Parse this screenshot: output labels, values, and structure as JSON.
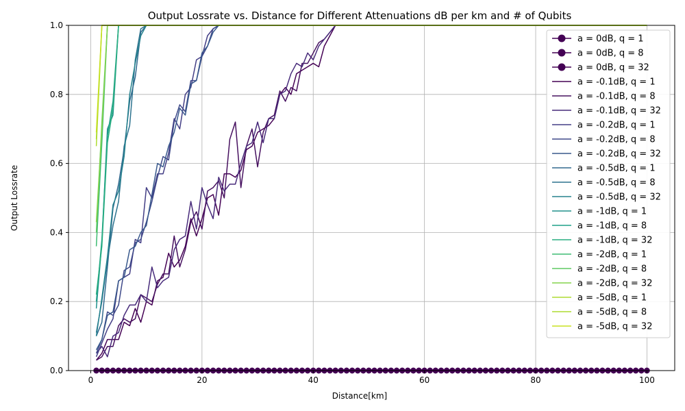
{
  "chart_data": {
    "type": "line",
    "title": "Output Lossrate vs. Distance for Different Attenuations dB per km and # of Qubits",
    "xlabel": "Distance[km]",
    "ylabel": "Output Lossrate",
    "xlim": [
      -4,
      105
    ],
    "ylim": [
      0,
      1
    ],
    "xticks": [
      0,
      20,
      40,
      60,
      80,
      100
    ],
    "yticks": [
      0.0,
      0.2,
      0.4,
      0.6,
      0.8,
      1.0
    ],
    "xtick_labels": [
      "0",
      "20",
      "40",
      "60",
      "80",
      "100"
    ],
    "ytick_labels": [
      "0.0",
      "0.2",
      "0.4",
      "0.6",
      "0.8",
      "1.0"
    ],
    "grid": true,
    "legend_position": "upper right",
    "series": [
      {
        "name": "a = 0dB, q = 1",
        "color": "#440154",
        "marker": "circle",
        "points": [
          [
            1,
            0
          ],
          [
            100,
            0
          ]
        ]
      },
      {
        "name": "a = 0dB, q = 8",
        "color": "#440154",
        "marker": "circle",
        "points": [
          [
            1,
            0
          ],
          [
            100,
            0
          ]
        ]
      },
      {
        "name": "a = 0dB, q = 32",
        "color": "#440154",
        "marker": "circle",
        "points": [
          [
            1,
            0
          ],
          [
            100,
            0
          ]
        ]
      },
      {
        "name": "a = -0.1dB, q = 1",
        "color": "#440154",
        "points": [
          [
            1,
            0.03
          ],
          [
            2,
            0.05
          ],
          [
            3,
            0.09
          ],
          [
            4,
            0.09
          ],
          [
            5,
            0.09
          ],
          [
            6,
            0.14
          ],
          [
            7,
            0.13
          ],
          [
            8,
            0.18
          ],
          [
            9,
            0.14
          ],
          [
            10,
            0.2
          ],
          [
            11,
            0.19
          ],
          [
            12,
            0.26
          ],
          [
            13,
            0.27
          ],
          [
            14,
            0.34
          ],
          [
            15,
            0.3
          ],
          [
            16,
            0.32
          ],
          [
            17,
            0.36
          ],
          [
            18,
            0.44
          ],
          [
            19,
            0.39
          ],
          [
            20,
            0.44
          ],
          [
            21,
            0.5
          ],
          [
            22,
            0.51
          ],
          [
            23,
            0.45
          ],
          [
            24,
            0.57
          ],
          [
            25,
            0.57
          ],
          [
            26,
            0.56
          ],
          [
            27,
            0.58
          ],
          [
            28,
            0.64
          ],
          [
            29,
            0.65
          ],
          [
            30,
            0.69
          ],
          [
            31,
            0.7
          ],
          [
            32,
            0.71
          ],
          [
            33,
            0.73
          ],
          [
            34,
            0.8
          ],
          [
            35,
            0.82
          ],
          [
            36,
            0.8
          ],
          [
            37,
            0.86
          ],
          [
            38,
            0.87
          ],
          [
            39,
            0.88
          ],
          [
            40,
            0.89
          ],
          [
            41,
            0.88
          ],
          [
            42,
            0.94
          ],
          [
            43,
            0.97
          ],
          [
            44,
            1.0
          ],
          [
            100,
            1.0
          ]
        ]
      },
      {
        "name": "a = -0.1dB, q = 8",
        "color": "#46105f",
        "points": [
          [
            1,
            0.03
          ],
          [
            2,
            0.04
          ],
          [
            3,
            0.07
          ],
          [
            4,
            0.07
          ],
          [
            5,
            0.13
          ],
          [
            6,
            0.15
          ],
          [
            7,
            0.14
          ],
          [
            8,
            0.15
          ],
          [
            9,
            0.22
          ],
          [
            10,
            0.21
          ],
          [
            11,
            0.2
          ],
          [
            12,
            0.25
          ],
          [
            13,
            0.28
          ],
          [
            14,
            0.28
          ],
          [
            15,
            0.39
          ],
          [
            16,
            0.3
          ],
          [
            17,
            0.35
          ],
          [
            18,
            0.43
          ],
          [
            19,
            0.46
          ],
          [
            20,
            0.41
          ],
          [
            21,
            0.52
          ],
          [
            22,
            0.53
          ],
          [
            23,
            0.55
          ],
          [
            24,
            0.5
          ],
          [
            25,
            0.67
          ],
          [
            26,
            0.72
          ],
          [
            27,
            0.53
          ],
          [
            28,
            0.65
          ],
          [
            29,
            0.7
          ],
          [
            30,
            0.59
          ],
          [
            31,
            0.69
          ],
          [
            32,
            0.73
          ],
          [
            33,
            0.74
          ],
          [
            34,
            0.81
          ],
          [
            35,
            0.78
          ],
          [
            36,
            0.82
          ],
          [
            37,
            0.81
          ],
          [
            38,
            0.89
          ],
          [
            39,
            0.89
          ],
          [
            40,
            0.92
          ],
          [
            41,
            0.95
          ],
          [
            42,
            0.96
          ],
          [
            43,
            0.98
          ],
          [
            44,
            1.0
          ],
          [
            100,
            1.0
          ]
        ]
      },
      {
        "name": "a = -0.1dB, q = 32",
        "color": "#472a7a",
        "points": [
          [
            1,
            0.05
          ],
          [
            2,
            0.07
          ],
          [
            3,
            0.04
          ],
          [
            4,
            0.1
          ],
          [
            5,
            0.11
          ],
          [
            6,
            0.16
          ],
          [
            7,
            0.19
          ],
          [
            8,
            0.19
          ],
          [
            9,
            0.22
          ],
          [
            10,
            0.2
          ],
          [
            11,
            0.3
          ],
          [
            12,
            0.24
          ],
          [
            13,
            0.26
          ],
          [
            14,
            0.27
          ],
          [
            15,
            0.35
          ],
          [
            16,
            0.38
          ],
          [
            17,
            0.39
          ],
          [
            18,
            0.49
          ],
          [
            19,
            0.41
          ],
          [
            20,
            0.53
          ],
          [
            21,
            0.48
          ],
          [
            22,
            0.44
          ],
          [
            23,
            0.56
          ],
          [
            24,
            0.52
          ],
          [
            25,
            0.54
          ],
          [
            26,
            0.54
          ],
          [
            27,
            0.6
          ],
          [
            28,
            0.65
          ],
          [
            29,
            0.66
          ],
          [
            30,
            0.72
          ],
          [
            31,
            0.66
          ],
          [
            32,
            0.73
          ],
          [
            33,
            0.73
          ],
          [
            34,
            0.8
          ],
          [
            35,
            0.81
          ],
          [
            36,
            0.86
          ],
          [
            37,
            0.89
          ],
          [
            38,
            0.88
          ],
          [
            39,
            0.92
          ],
          [
            40,
            0.9
          ],
          [
            41,
            0.94
          ],
          [
            42,
            0.96
          ],
          [
            43,
            0.98
          ],
          [
            44,
            1.0
          ],
          [
            100,
            1.0
          ]
        ]
      },
      {
        "name": "a = -0.2dB, q = 1",
        "color": "#433e85",
        "points": [
          [
            1,
            0.04
          ],
          [
            2,
            0.08
          ],
          [
            3,
            0.12
          ],
          [
            4,
            0.15
          ],
          [
            5,
            0.26
          ],
          [
            6,
            0.27
          ],
          [
            7,
            0.28
          ],
          [
            8,
            0.38
          ],
          [
            9,
            0.37
          ],
          [
            10,
            0.53
          ],
          [
            11,
            0.5
          ],
          [
            12,
            0.57
          ],
          [
            13,
            0.57
          ],
          [
            14,
            0.63
          ],
          [
            15,
            0.73
          ],
          [
            16,
            0.7
          ],
          [
            17,
            0.8
          ],
          [
            18,
            0.82
          ],
          [
            19,
            0.9
          ],
          [
            20,
            0.91
          ],
          [
            21,
            0.97
          ],
          [
            22,
            0.99
          ],
          [
            23,
            1.0
          ],
          [
            100,
            1.0
          ]
        ]
      },
      {
        "name": "a = -0.2dB, q = 8",
        "color": "#3e4989",
        "points": [
          [
            1,
            0.05
          ],
          [
            2,
            0.09
          ],
          [
            3,
            0.17
          ],
          [
            4,
            0.16
          ],
          [
            5,
            0.19
          ],
          [
            6,
            0.29
          ],
          [
            7,
            0.3
          ],
          [
            8,
            0.37
          ],
          [
            9,
            0.38
          ],
          [
            10,
            0.43
          ],
          [
            11,
            0.49
          ],
          [
            12,
            0.56
          ],
          [
            13,
            0.62
          ],
          [
            14,
            0.61
          ],
          [
            15,
            0.72
          ],
          [
            16,
            0.77
          ],
          [
            17,
            0.75
          ],
          [
            18,
            0.84
          ],
          [
            19,
            0.84
          ],
          [
            20,
            0.91
          ],
          [
            21,
            0.94
          ],
          [
            22,
            0.99
          ],
          [
            23,
            1.0
          ],
          [
            100,
            1.0
          ]
        ]
      },
      {
        "name": "a = -0.2dB, q = 32",
        "color": "#38588c",
        "points": [
          [
            1,
            0.06
          ],
          [
            2,
            0.09
          ],
          [
            3,
            0.16
          ],
          [
            4,
            0.17
          ],
          [
            5,
            0.26
          ],
          [
            6,
            0.27
          ],
          [
            7,
            0.35
          ],
          [
            8,
            0.36
          ],
          [
            9,
            0.4
          ],
          [
            10,
            0.42
          ],
          [
            11,
            0.51
          ],
          [
            12,
            0.6
          ],
          [
            13,
            0.59
          ],
          [
            14,
            0.65
          ],
          [
            15,
            0.69
          ],
          [
            16,
            0.76
          ],
          [
            17,
            0.74
          ],
          [
            18,
            0.83
          ],
          [
            19,
            0.84
          ],
          [
            20,
            0.92
          ],
          [
            21,
            0.94
          ],
          [
            22,
            0.98
          ],
          [
            23,
            1.0
          ],
          [
            100,
            1.0
          ]
        ]
      },
      {
        "name": "a = -0.5dB, q = 1",
        "color": "#31688e",
        "points": [
          [
            1,
            0.1
          ],
          [
            2,
            0.14
          ],
          [
            3,
            0.3
          ],
          [
            4,
            0.47
          ],
          [
            5,
            0.54
          ],
          [
            6,
            0.64
          ],
          [
            7,
            0.78
          ],
          [
            8,
            0.85
          ],
          [
            9,
            0.98
          ],
          [
            10,
            1.0
          ],
          [
            100,
            1.0
          ]
        ]
      },
      {
        "name": "a = -0.5dB, q = 8",
        "color": "#2c728e",
        "points": [
          [
            1,
            0.11
          ],
          [
            2,
            0.2
          ],
          [
            3,
            0.32
          ],
          [
            4,
            0.42
          ],
          [
            5,
            0.49
          ],
          [
            6,
            0.65
          ],
          [
            7,
            0.71
          ],
          [
            8,
            0.9
          ],
          [
            9,
            0.99
          ],
          [
            10,
            1.0
          ],
          [
            100,
            1.0
          ]
        ]
      },
      {
        "name": "a = -0.5dB, q = 32",
        "color": "#26828e",
        "points": [
          [
            1,
            0.1
          ],
          [
            2,
            0.21
          ],
          [
            3,
            0.33
          ],
          [
            4,
            0.48
          ],
          [
            5,
            0.52
          ],
          [
            6,
            0.62
          ],
          [
            7,
            0.8
          ],
          [
            8,
            0.89
          ],
          [
            9,
            0.97
          ],
          [
            10,
            1.0
          ],
          [
            100,
            1.0
          ]
        ]
      },
      {
        "name": "a = -1dB, q = 1",
        "color": "#21918c",
        "points": [
          [
            1,
            0.18
          ],
          [
            2,
            0.37
          ],
          [
            3,
            0.7
          ],
          [
            4,
            0.74
          ],
          [
            5,
            1.0
          ],
          [
            100,
            1.0
          ]
        ]
      },
      {
        "name": "a = -1dB, q = 8",
        "color": "#1fa088",
        "points": [
          [
            1,
            0.2
          ],
          [
            2,
            0.38
          ],
          [
            3,
            0.68
          ],
          [
            4,
            0.78
          ],
          [
            5,
            1.0
          ],
          [
            100,
            1.0
          ]
        ]
      },
      {
        "name": "a = -1dB, q = 32",
        "color": "#28ae80",
        "points": [
          [
            1,
            0.22
          ],
          [
            2,
            0.36
          ],
          [
            3,
            0.66
          ],
          [
            4,
            0.76
          ],
          [
            5,
            1.0
          ],
          [
            100,
            1.0
          ]
        ]
      },
      {
        "name": "a = -2dB, q = 1",
        "color": "#3fbc73",
        "points": [
          [
            1,
            0.36
          ],
          [
            2,
            0.66
          ],
          [
            3,
            1.0
          ],
          [
            100,
            1.0
          ]
        ]
      },
      {
        "name": "a = -2dB, q = 8",
        "color": "#5ec962",
        "points": [
          [
            1,
            0.4
          ],
          [
            2,
            0.72
          ],
          [
            3,
            1.0
          ],
          [
            100,
            1.0
          ]
        ]
      },
      {
        "name": "a = -2dB, q = 32",
        "color": "#84d44b",
        "points": [
          [
            1,
            0.43
          ],
          [
            2,
            0.7
          ],
          [
            3,
            1.0
          ],
          [
            100,
            1.0
          ]
        ]
      },
      {
        "name": "a = -5dB, q = 1",
        "color": "#addc30",
        "points": [
          [
            1,
            0.65
          ],
          [
            2,
            1.0
          ],
          [
            100,
            1.0
          ]
        ]
      },
      {
        "name": "a = -5dB, q = 8",
        "color": "#addc30",
        "points": [
          [
            1,
            0.67
          ],
          [
            2,
            1.0
          ],
          [
            100,
            1.0
          ]
        ]
      },
      {
        "name": "a = -5dB, q = 32",
        "color": "#c8e020",
        "points": [
          [
            1,
            0.69
          ],
          [
            2,
            1.0
          ],
          [
            100,
            1.0
          ]
        ]
      }
    ]
  }
}
